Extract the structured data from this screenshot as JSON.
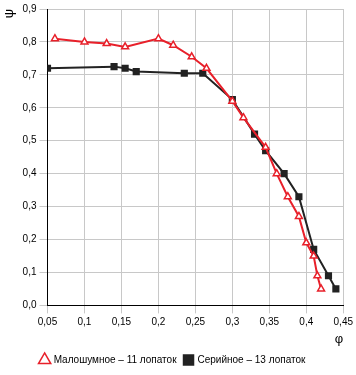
{
  "chart_data": {
    "type": "line",
    "x_label": "φ",
    "y_label": "ψ",
    "xlim": [
      0.05,
      0.45
    ],
    "xticks": [
      {
        "value": 0.05,
        "label": "0,05"
      },
      {
        "value": 0.1,
        "label": "0,1"
      },
      {
        "value": 0.15,
        "label": "0,15"
      },
      {
        "value": 0.2,
        "label": "0,2"
      },
      {
        "value": 0.25,
        "label": "0,25"
      },
      {
        "value": 0.3,
        "label": "0,3"
      },
      {
        "value": 0.35,
        "label": "0,35"
      },
      {
        "value": 0.4,
        "label": "0,4"
      },
      {
        "value": 0.45,
        "label": "0,45"
      }
    ],
    "ylim": [
      0,
      0.9
    ],
    "yticks": [
      {
        "value": 0,
        "label": "0,0"
      },
      {
        "value": 0.1,
        "label": "0,1"
      },
      {
        "value": 0.2,
        "label": "0,2"
      },
      {
        "value": 0.3,
        "label": "0,3"
      },
      {
        "value": 0.4,
        "label": "0,4"
      },
      {
        "value": 0.5,
        "label": "0,5"
      },
      {
        "value": 0.6,
        "label": "0,6"
      },
      {
        "value": 0.7,
        "label": "0,7"
      },
      {
        "value": 0.8,
        "label": "0,8"
      },
      {
        "value": 0.9,
        "label": "0,9"
      }
    ],
    "grid": true,
    "legend": "bottom",
    "series": [
      {
        "name": "Малошумное – 11 лопаток",
        "color": "#e8202a",
        "marker": "triangle",
        "line_style": "solid",
        "x": [
          0.06,
          0.1,
          0.13,
          0.155,
          0.2,
          0.22,
          0.245,
          0.265,
          0.3,
          0.315,
          0.345,
          0.36,
          0.375,
          0.39,
          0.4,
          0.41,
          0.415,
          0.42
        ],
        "values": [
          0.81,
          0.8,
          0.795,
          0.785,
          0.81,
          0.79,
          0.755,
          0.72,
          0.62,
          0.57,
          0.48,
          0.4,
          0.33,
          0.27,
          0.19,
          0.15,
          0.09,
          0.05
        ]
      },
      {
        "name": "Серийное – 13 лопаток",
        "color": "#222222",
        "marker": "square",
        "line_style": "solid",
        "x": [
          0.05,
          0.14,
          0.155,
          0.17,
          0.235,
          0.26,
          0.3,
          0.33,
          0.345,
          0.37,
          0.39,
          0.41,
          0.43,
          0.44
        ],
        "values": [
          0.72,
          0.725,
          0.72,
          0.71,
          0.705,
          0.705,
          0.625,
          0.52,
          0.47,
          0.4,
          0.33,
          0.17,
          0.09,
          0.05
        ]
      }
    ]
  }
}
